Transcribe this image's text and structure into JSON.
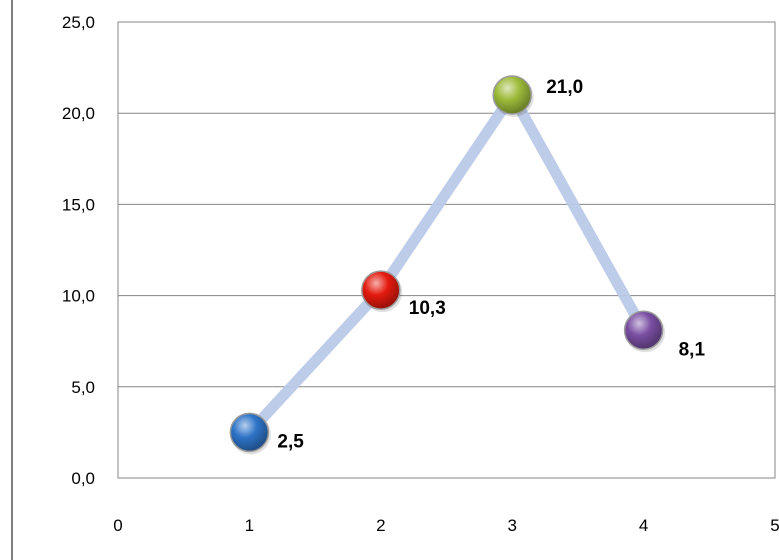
{
  "chart_data": {
    "type": "scatter",
    "title": "",
    "xlabel": "",
    "ylabel": "",
    "xlim": [
      0,
      5
    ],
    "ylim": [
      0,
      25
    ],
    "x_ticks": [
      "0",
      "1",
      "2",
      "3",
      "4",
      "5"
    ],
    "y_ticks": [
      "0,0",
      "5,0",
      "10,0",
      "15,0",
      "20,0",
      "25,0"
    ],
    "grid": "horizontal",
    "legend": "none",
    "line_color": "#b9c9e8",
    "points": [
      {
        "x": 1,
        "y": 2.5,
        "label": "2,5",
        "color": "#2e74c8"
      },
      {
        "x": 2,
        "y": 10.3,
        "label": "10,3",
        "color": "#e41a0e"
      },
      {
        "x": 3,
        "y": 21.0,
        "label": "21,0",
        "color": "#9dbb3a"
      },
      {
        "x": 4,
        "y": 8.1,
        "label": "8,1",
        "color": "#7a4fa3"
      }
    ]
  }
}
